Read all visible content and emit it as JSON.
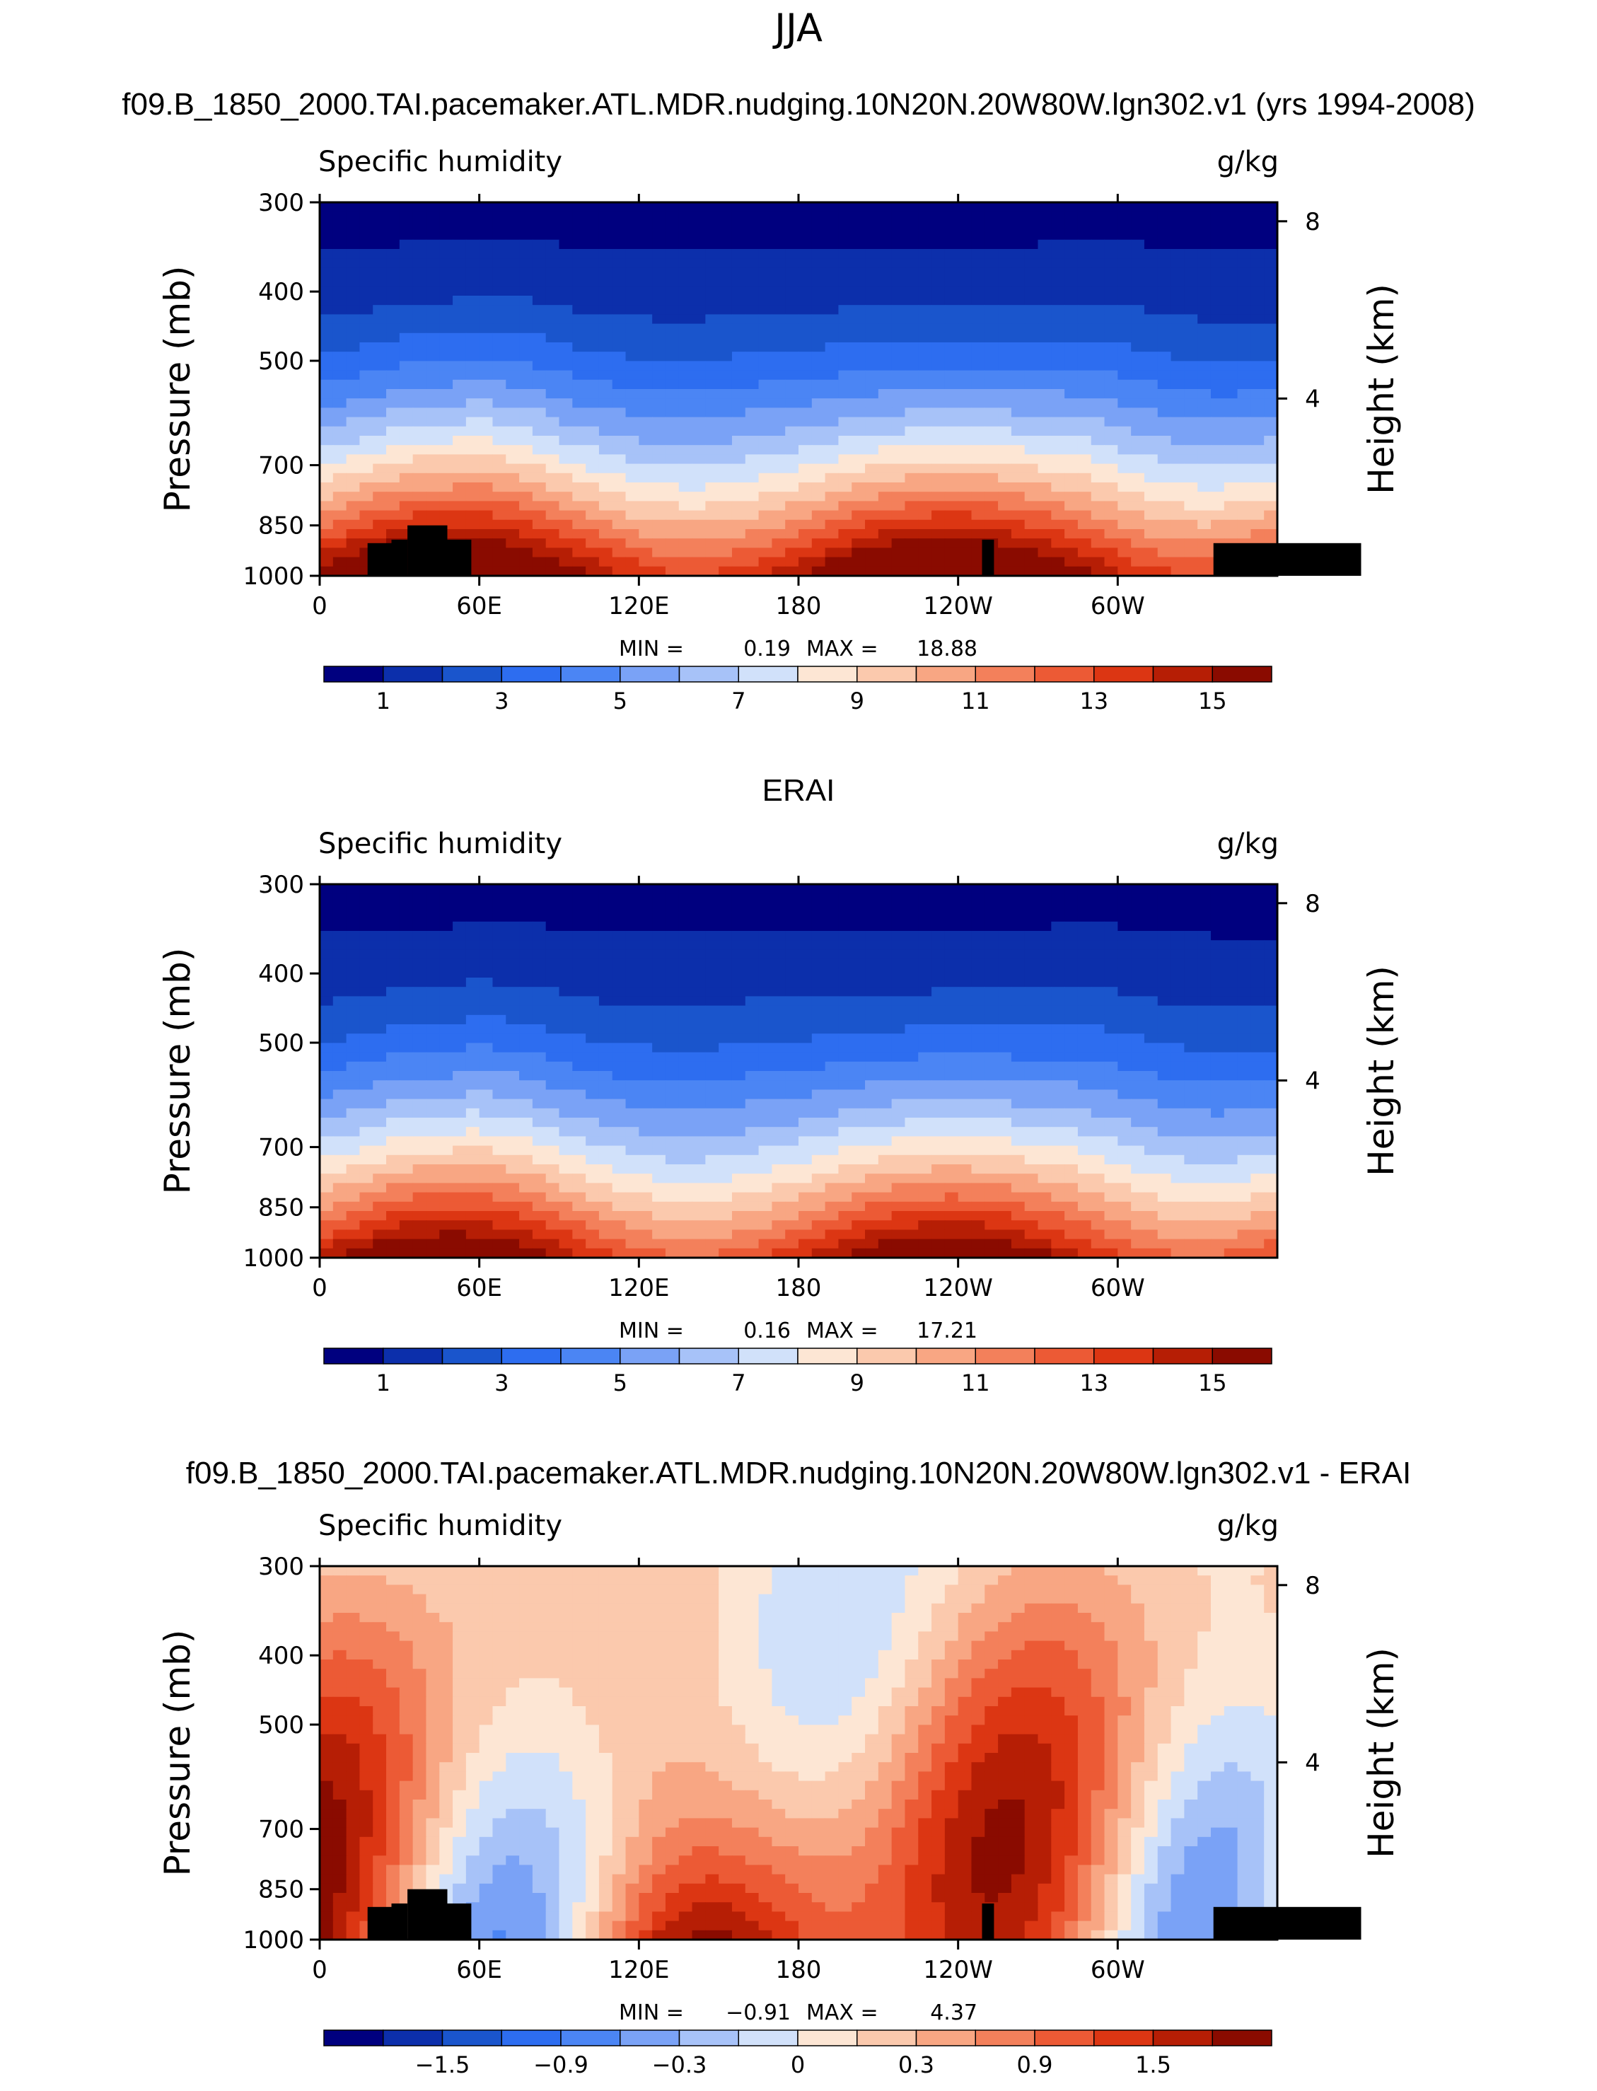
{
  "season": "JJA",
  "chart_data": [
    {
      "type": "heatmap",
      "title": "f09.B_1850_2000.TAI.pacemaker.ATL.MDR.nudging.10N20N.20W80W.lgn302.v1 (yrs 1994-2008)",
      "variable": "Specific humidity",
      "units": "g/kg",
      "ylabel": "Pressure (mb)",
      "y2label": "Height (km)",
      "yticks": [
        "300",
        "400",
        "500",
        "700",
        "850",
        "1000"
      ],
      "y2ticks": [
        "8",
        "4"
      ],
      "xticks": [
        "0",
        "60E",
        "120E",
        "180",
        "120W",
        "60W"
      ],
      "min_label": "MIN =",
      "min": "0.19",
      "max_label": "MAX =",
      "max": "18.88",
      "colorbar_labels": [
        "1",
        "3",
        "5",
        "7",
        "9",
        "11",
        "13",
        "15"
      ],
      "colors": [
        "#00007f",
        "#0c2fab",
        "#1a55cc",
        "#2d6df0",
        "#4b85f4",
        "#7aa2f6",
        "#a7c2f8",
        "#d1e1fa",
        "#fde6d4",
        "#fbc9ad",
        "#f8a683",
        "#f3805b",
        "#ec5a35",
        "#dc3613",
        "#b61e05",
        "#8a0b00"
      ],
      "bands": [
        [
          12,
          12,
          20,
          30,
          26,
          46,
          44,
          42,
          30,
          28,
          28,
          28,
          30,
          36,
          40,
          32,
          26,
          24,
          22,
          18,
          20,
          22,
          26,
          30,
          44,
          56,
          52,
          44,
          36,
          26,
          20,
          14
        ],
        [
          0.8,
          0.8,
          0.8,
          0.8,
          0.8,
          0.8,
          0.8,
          0.8,
          0.8,
          0.8,
          0.8,
          0.8,
          0.8,
          0.8,
          0.8,
          0.8,
          0.8,
          0.8,
          0.8,
          0.8,
          0.8,
          0.8,
          0.8,
          0.8,
          0.8,
          0.8,
          0.8,
          0.8,
          0.8,
          0.8,
          0.8,
          0.8
        ],
        [
          10.5,
          10.5,
          10.5,
          10.5,
          10.5,
          10.5,
          10.5,
          10.5,
          10.5,
          10.5,
          10.5,
          10.5,
          10.5,
          10.5,
          10.5,
          10.5,
          10.5,
          10.5,
          10.5,
          10.5,
          10.5,
          10.5,
          10.5,
          10.5,
          10.5,
          10.5,
          10.5,
          10.5,
          10.5,
          10.5,
          10.5,
          10.5
        ]
      ],
      "terrain": [
        [
          0.6,
          0.9,
          1.0
        ],
        [
          0.9,
          1.1,
          1.1
        ],
        [
          1.1,
          1.6,
          1.5
        ],
        [
          1.6,
          1.9,
          1.1
        ],
        [
          8.3,
          8.45,
          1.1
        ],
        [
          11.2,
          12.0,
          1.0
        ],
        [
          12.0,
          13.05,
          1.0
        ]
      ]
    },
    {
      "type": "heatmap",
      "title": "ERAI",
      "variable": "Specific humidity",
      "units": "g/kg",
      "ylabel": "Pressure (mb)",
      "y2label": "Height (km)",
      "yticks": [
        "300",
        "400",
        "500",
        "700",
        "850",
        "1000"
      ],
      "y2ticks": [
        "8",
        "4"
      ],
      "xticks": [
        "0",
        "60E",
        "120E",
        "180",
        "120W",
        "60W"
      ],
      "min_label": "MIN =",
      "min": "0.16",
      "max_label": "MAX =",
      "max": "17.21",
      "colorbar_labels": [
        "1",
        "3",
        "5",
        "7",
        "9",
        "11",
        "13",
        "15"
      ],
      "colors": [
        "#00007f",
        "#0c2fab",
        "#1a55cc",
        "#2d6df0",
        "#4b85f4",
        "#7aa2f6",
        "#a7c2f8",
        "#d1e1fa",
        "#fde6d4",
        "#fbc9ad",
        "#f8a683",
        "#f3805b",
        "#ec5a35",
        "#dc3613",
        "#b61e05",
        "#8a0b00"
      ],
      "bands": [
        [
          12,
          12,
          20,
          30,
          26,
          46,
          44,
          42,
          30,
          28,
          28,
          28,
          30,
          36,
          40,
          32,
          26,
          24,
          22,
          18,
          20,
          22,
          26,
          30,
          44,
          56,
          52,
          44,
          36,
          26,
          20,
          14
        ],
        [
          0.8,
          0.8,
          0.8,
          0.8,
          0.8,
          0.8,
          0.8,
          0.8,
          0.8,
          0.8,
          0.8,
          0.8,
          0.8,
          0.8,
          0.8,
          0.8,
          0.8,
          0.8,
          0.8,
          0.8,
          0.8,
          0.8,
          0.8,
          0.8,
          0.8,
          0.8,
          0.8,
          0.8,
          0.8,
          0.8,
          0.8,
          0.8
        ],
        [
          10.5,
          10.5,
          10.5,
          10.5,
          10.5,
          10.5,
          10.5,
          10.5,
          10.5,
          10.5,
          10.5,
          10.5,
          10.5,
          10.5,
          10.5,
          10.5,
          10.5,
          10.5,
          10.5,
          10.5,
          10.5,
          10.5,
          10.5,
          10.5,
          10.5,
          10.5,
          10.5,
          10.5,
          10.5,
          10.5,
          10.5,
          10.5
        ]
      ],
      "terrain": []
    },
    {
      "type": "heatmap",
      "title": "f09.B_1850_2000.TAI.pacemaker.ATL.MDR.nudging.10N20N.20W80W.lgn302.v1 - ERAI",
      "variable": "Specific humidity",
      "units": "g/kg",
      "ylabel": "Pressure (mb)",
      "y2label": "Height (km)",
      "yticks": [
        "300",
        "400",
        "500",
        "700",
        "850",
        "1000"
      ],
      "y2ticks": [
        "8",
        "4"
      ],
      "xticks": [
        "0",
        "60E",
        "120E",
        "180",
        "120W",
        "60W"
      ],
      "min_label": "MIN =",
      "min": "−0.91",
      "max_label": "MAX =",
      "max": "4.37",
      "colorbar_labels": [
        "−1.5",
        "−0.9",
        "−0.3",
        "0",
        "0.3",
        "0.9",
        "1.5"
      ],
      "colors": [
        "#00007f",
        "#0c2fab",
        "#1a55cc",
        "#2d6df0",
        "#4b85f4",
        "#7aa2f6",
        "#a7c2f8",
        "#d1e1fa",
        "#fde6d4",
        "#fbc9ad",
        "#f8a683",
        "#f3805b",
        "#ec5a35",
        "#dc3613",
        "#b61e05",
        "#8a0b00"
      ],
      "bands": [
        [
          0.6,
          0.4,
          0.3,
          0.2,
          0.3,
          0.4,
          0.5,
          0.6,
          0.5,
          0.4,
          0.3,
          0.2,
          0.1,
          0.0,
          -0.1,
          -0.2,
          -0.3
        ],
        [
          1.2,
          1.3,
          1.2,
          1.1,
          1.0,
          0.9,
          0.8,
          0.9,
          1.0,
          1.1,
          1.2,
          1.3,
          1.2,
          1.1,
          1.0,
          0.9,
          0.8
        ],
        [
          1.0,
          0.9,
          0.8,
          0.9,
          1.0,
          1.1,
          1.2,
          1.1,
          1.0,
          0.9,
          0.8,
          0.9,
          1.0,
          1.1,
          1.2,
          1.3,
          1.4
        ]
      ],
      "terrain": [
        [
          0.6,
          0.9,
          1.0
        ],
        [
          0.9,
          1.1,
          1.1
        ],
        [
          1.1,
          1.6,
          1.5
        ],
        [
          1.6,
          1.9,
          1.1
        ],
        [
          8.3,
          8.45,
          1.1
        ],
        [
          11.2,
          12.0,
          1.0
        ],
        [
          12.0,
          13.05,
          1.0
        ]
      ]
    }
  ]
}
